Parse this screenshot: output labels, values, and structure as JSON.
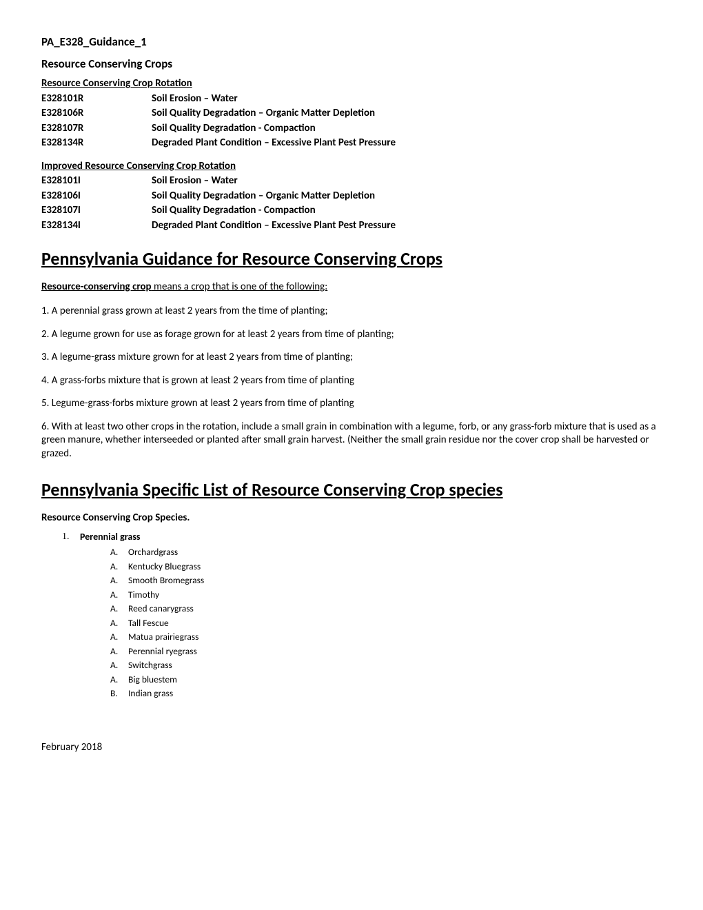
{
  "docTitle": "PA_E328_Guidance_1",
  "subtitle": "Resource Conserving Crops",
  "section1": {
    "heading": "Resource Conserving Crop Rotation",
    "rows": [
      {
        "code": "E328101R",
        "desc": "Soil Erosion – Water"
      },
      {
        "code": "E328106R",
        "desc": "Soil Quality Degradation – Organic Matter Depletion"
      },
      {
        "code": "E328107R",
        "desc": "Soil Quality Degradation - Compaction"
      },
      {
        "code": "E328134R",
        "desc": "Degraded Plant Condition – Excessive Plant Pest Pressure"
      }
    ]
  },
  "section2": {
    "heading": "Improved Resource Conserving Crop Rotation",
    "rows": [
      {
        "code": "E328101I",
        "desc": "Soil Erosion – Water"
      },
      {
        "code": "E328106I",
        "desc": "Soil Quality Degradation – Organic Matter Depletion"
      },
      {
        "code": "E328107I",
        "desc": "Soil Quality Degradation - Compaction"
      },
      {
        "code": "E328134I",
        "desc": "Degraded Plant Condition – Excessive Plant Pest Pressure"
      }
    ]
  },
  "mainHeading1": "Pennsylvania Guidance for Resource Conserving Crops",
  "definition": {
    "boldUnderline": "Resource-conserving crop",
    "restUnderline": " means a crop that is one of the following:"
  },
  "numItems": [
    "1. A perennial grass grown at least 2 years from the time of planting;",
    "2. A legume grown for use as forage grown for at least 2 years from time of planting;",
    "3. A legume-grass mixture grown for at least 2 years from time of planting;",
    "4. A grass-forbs mixture that is grown at least 2 years from time of planting",
    "5. Legume-grass-forbs mixture grown at least 2 years from time of planting"
  ],
  "item6": {
    "prefix": "6. ",
    "underline": "With at least two other crops in the rotation",
    "rest": ", include a small grain in combination with a legume, forb, or any grass-forb mixture that is used as a green manure, whether interseeded or planted after small grain harvest. (Neither the small grain residue nor the cover crop shall be harvested or grazed."
  },
  "mainHeading2": "Pennsylvania Specific List of Resource Conserving Crop species",
  "speciesHeading": "Resource Conserving Crop Species.",
  "list": {
    "marker": "1.",
    "label": "Perennial grass",
    "items": [
      {
        "m": "A.",
        "t": "Orchardgrass"
      },
      {
        "m": "A.",
        "t": "Kentucky Bluegrass"
      },
      {
        "m": "A.",
        "t": "Smooth Bromegrass"
      },
      {
        "m": "A.",
        "t": "Timothy"
      },
      {
        "m": "A.",
        "t": "Reed canarygrass"
      },
      {
        "m": "A.",
        "t": "Tall Fescue"
      },
      {
        "m": "A.",
        "t": "Matua prairiegrass"
      },
      {
        "m": "A.",
        "t": "Perennial ryegrass"
      },
      {
        "m": "A.",
        "t": "Switchgrass"
      },
      {
        "m": "A.",
        "t": "Big bluestem"
      },
      {
        "m": "B.",
        "t": "Indian grass"
      }
    ]
  },
  "footer": "February 2018"
}
